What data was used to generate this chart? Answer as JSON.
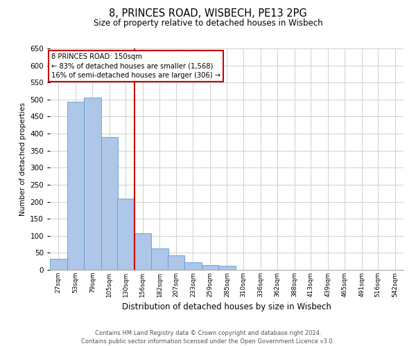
{
  "title": "8, PRINCES ROAD, WISBECH, PE13 2PG",
  "subtitle": "Size of property relative to detached houses in Wisbech",
  "xlabel": "Distribution of detached houses by size in Wisbech",
  "ylabel": "Number of detached properties",
  "bin_labels": [
    "27sqm",
    "53sqm",
    "79sqm",
    "105sqm",
    "130sqm",
    "156sqm",
    "182sqm",
    "207sqm",
    "233sqm",
    "259sqm",
    "285sqm",
    "310sqm",
    "336sqm",
    "362sqm",
    "388sqm",
    "413sqm",
    "439sqm",
    "465sqm",
    "491sqm",
    "516sqm",
    "542sqm"
  ],
  "bin_edges": [
    27,
    53,
    79,
    105,
    130,
    156,
    182,
    207,
    233,
    259,
    285,
    310,
    336,
    362,
    388,
    413,
    439,
    465,
    491,
    516,
    542
  ],
  "counts": [
    33,
    493,
    505,
    390,
    210,
    107,
    62,
    42,
    22,
    14,
    12,
    1,
    0,
    0,
    0,
    0,
    0,
    0,
    1,
    0,
    1
  ],
  "bar_color": "#aec6e8",
  "bar_edge_color": "#5a9fd4",
  "reference_line_x": 156,
  "reference_line_color": "#cc0000",
  "annotation_title": "8 PRINCES ROAD: 150sqm",
  "annotation_line1": "← 83% of detached houses are smaller (1,568)",
  "annotation_line2": "16% of semi-detached houses are larger (306) →",
  "annotation_box_color": "#cc0000",
  "ylim": [
    0,
    650
  ],
  "yticks": [
    0,
    50,
    100,
    150,
    200,
    250,
    300,
    350,
    400,
    450,
    500,
    550,
    600,
    650
  ],
  "footer_line1": "Contains HM Land Registry data © Crown copyright and database right 2024.",
  "footer_line2": "Contains public sector information licensed under the Open Government Licence v3.0.",
  "background_color": "#ffffff",
  "grid_color": "#d0d0d0"
}
